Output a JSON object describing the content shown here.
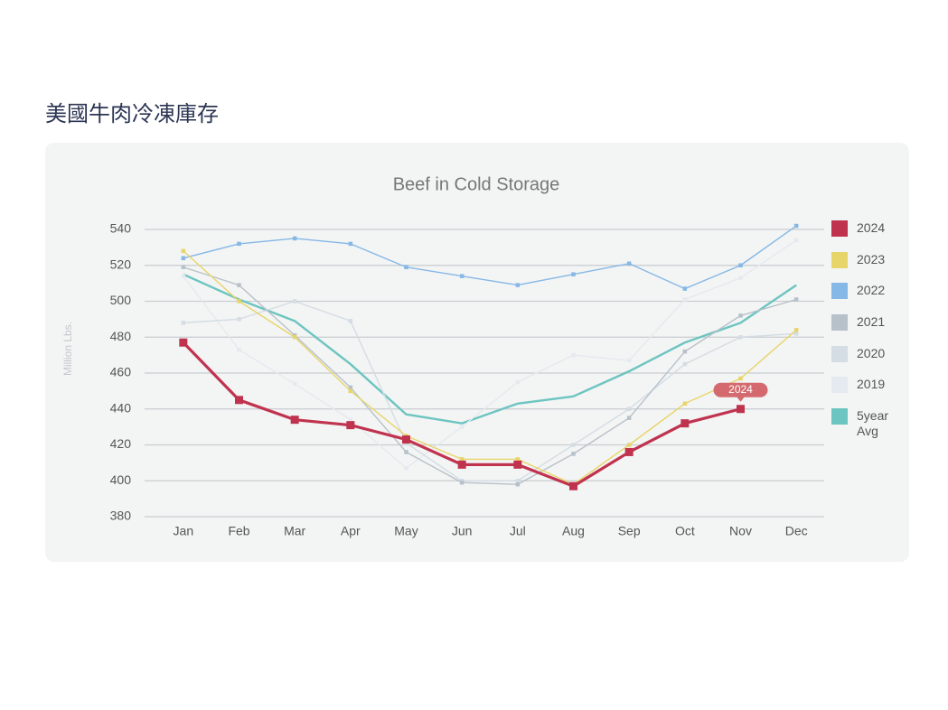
{
  "heading": "美國牛肉冷凍庫存",
  "chart_data": {
    "type": "line",
    "title": "Beef in Cold Storage",
    "y_label": "Million Lbs.",
    "categories": [
      "Jan",
      "Feb",
      "Mar",
      "Apr",
      "May",
      "Jun",
      "Jul",
      "Aug",
      "Sep",
      "Oct",
      "Nov",
      "Dec"
    ],
    "series": [
      {
        "name": "2024",
        "color": "#c0334f",
        "values": [
          477,
          445,
          434,
          431,
          423,
          409,
          409,
          397,
          416,
          432,
          440,
          null
        ]
      },
      {
        "name": "2023",
        "color": "#e8d56a",
        "values": [
          528,
          500,
          480,
          450,
          425,
          412,
          412,
          398,
          420,
          443,
          457,
          484
        ]
      },
      {
        "name": "2022",
        "color": "#85b8e6",
        "values": [
          524,
          532,
          535,
          532,
          519,
          514,
          509,
          515,
          521,
          507,
          520,
          542
        ]
      },
      {
        "name": "2021",
        "color": "#b7c1c9",
        "values": [
          519,
          509,
          481,
          452,
          416,
          399,
          398,
          415,
          435,
          472,
          492,
          501
        ]
      },
      {
        "name": "2020",
        "color": "#d3dde3",
        "values": [
          488,
          490,
          500,
          489,
          421,
          400,
          400,
          420,
          440,
          465,
          480,
          482
        ]
      },
      {
        "name": "2019",
        "color": "#e4eaef",
        "values": [
          514,
          473,
          454,
          434,
          407,
          430,
          455,
          470,
          467,
          501,
          513,
          534
        ]
      },
      {
        "name": "5year Avg",
        "color": "#6cc5c0",
        "values": [
          515,
          501,
          489,
          465,
          437,
          432,
          443,
          447,
          461,
          477,
          488,
          509
        ]
      }
    ],
    "annotation": "2024",
    "ylim": [
      380,
      540
    ],
    "yticks": [
      380,
      400,
      420,
      440,
      460,
      480,
      500,
      520,
      540
    ],
    "grid": true,
    "legend": "right"
  }
}
